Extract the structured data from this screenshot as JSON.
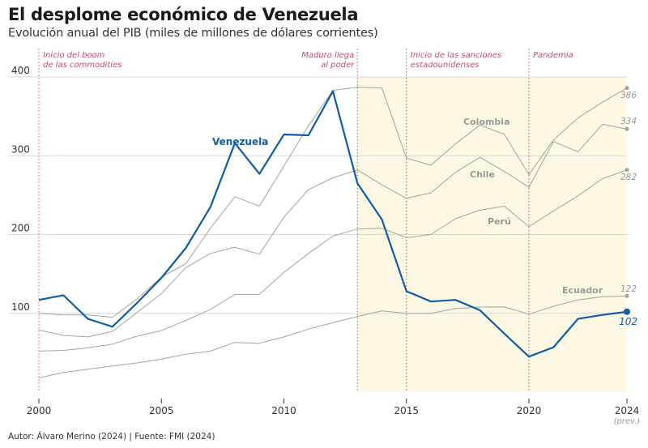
{
  "header": {
    "title": "El desplome económico de Venezuela",
    "subtitle": "Evolución anual del PIB (miles de millones de dólares corrientes)"
  },
  "footer": {
    "credit": "Autor: Álvaro Merino (2024) | Fuente: FMI (2024)"
  },
  "colors": {
    "venezuela": "#0e5da8",
    "others": "#a3a3a3",
    "shade": "#fdf8e4",
    "annotation": "#c0506e",
    "grid": "#d8d8d8"
  },
  "chart_data": {
    "type": "line",
    "title": "El desplome económico de Venezuela",
    "subtitle": "Evolución anual del PIB (miles de millones de dólares corrientes)",
    "xlabel": "",
    "ylabel": "",
    "xlim": [
      2000,
      2024
    ],
    "ylim": [
      0,
      400
    ],
    "y_ticks": [
      100,
      200,
      300,
      400
    ],
    "x_ticks": [
      {
        "value": 2000,
        "label": "2000"
      },
      {
        "value": 2005,
        "label": "2005"
      },
      {
        "value": 2010,
        "label": "2010"
      },
      {
        "value": 2015,
        "label": "2015"
      },
      {
        "value": 2020,
        "label": "2020"
      },
      {
        "value": 2024,
        "label": "2024",
        "sublabel": "(prev.)"
      }
    ],
    "grid": true,
    "shaded_region": {
      "from": 2013,
      "to": 2024
    },
    "x": [
      2000,
      2001,
      2002,
      2003,
      2004,
      2005,
      2006,
      2007,
      2008,
      2009,
      2010,
      2011,
      2012,
      2013,
      2014,
      2015,
      2016,
      2017,
      2018,
      2019,
      2020,
      2021,
      2022,
      2023,
      2024
    ],
    "series": [
      {
        "name": "Venezuela",
        "highlight": true,
        "end_label": "102",
        "values": [
          117,
          123,
          93,
          83,
          113,
          145,
          183,
          235,
          316,
          277,
          327,
          326,
          382,
          265,
          219,
          128,
          115,
          117,
          104,
          74,
          45,
          57,
          93,
          98,
          102
        ]
      },
      {
        "name": "Colombia",
        "highlight": false,
        "end_label": "",
        "values": [
          100,
          98,
          98,
          95,
          118,
          146,
          163,
          208,
          248,
          236,
          287,
          338,
          383,
          387,
          386,
          297,
          288,
          315,
          339,
          327,
          276,
          320,
          348,
          368,
          386
        ]
      },
      {
        "name": "Chile",
        "highlight": false,
        "end_label": "334",
        "values": [
          79,
          72,
          70,
          77,
          101,
          125,
          158,
          176,
          184,
          175,
          222,
          257,
          272,
          282,
          263,
          246,
          253,
          279,
          298,
          280,
          260,
          318,
          305,
          340,
          334
        ]
      },
      {
        "name": "Perú",
        "highlight": false,
        "end_label": "282",
        "values": [
          52,
          53,
          56,
          61,
          71,
          78,
          91,
          105,
          124,
          124,
          152,
          176,
          198,
          207,
          208,
          196,
          200,
          220,
          231,
          236,
          210,
          230,
          249,
          271,
          282
        ]
      },
      {
        "name": "Ecuador",
        "highlight": false,
        "end_label": "122",
        "values": [
          18,
          25,
          29,
          33,
          37,
          42,
          48,
          52,
          63,
          62,
          70,
          80,
          88,
          96,
          103,
          100,
          100,
          106,
          108,
          108,
          99,
          109,
          117,
          121,
          122
        ]
      }
    ],
    "series_labels": [
      {
        "series": "Venezuela",
        "text": "Venezuela"
      },
      {
        "series": "Colombia",
        "text": "Colombia"
      },
      {
        "series": "Chile",
        "text": "Chile"
      },
      {
        "series": "Perú",
        "text": "Perú"
      },
      {
        "series": "Ecuador",
        "text": "Ecuador"
      }
    ],
    "end_value_labels": [
      "386",
      "334",
      "282",
      "122",
      "102"
    ],
    "annotations": [
      {
        "year": 2000,
        "lines": [
          "Inicio del boom",
          "de las commodities"
        ],
        "align": "right-of-line"
      },
      {
        "year": 2013,
        "lines": [
          "Maduro llega",
          "al poder"
        ],
        "align": "left-of-line"
      },
      {
        "year": 2015,
        "lines": [
          "Inicio de las sanciones",
          "estadounidenses"
        ],
        "align": "right-of-line"
      },
      {
        "year": 2020,
        "lines": [
          "Pandemia"
        ],
        "align": "right-of-line"
      }
    ]
  }
}
